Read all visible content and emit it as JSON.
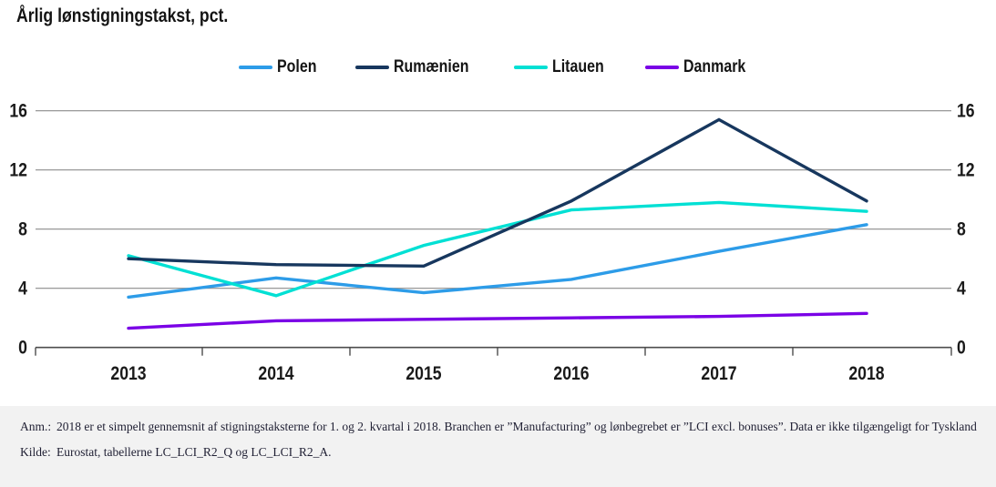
{
  "title": "Årlig lønstigningstakst, pct.",
  "chart_data": {
    "type": "line",
    "title": "Årlig lønstigningstakst, pct.",
    "xlabel": "",
    "ylabel": "pct.",
    "ylim": [
      0,
      16
    ],
    "grid": "horizontal",
    "legend_position": "top-center",
    "x": [
      2013,
      2014,
      2015,
      2016,
      2017,
      2018
    ],
    "y_ticks": [
      0,
      4,
      8,
      12,
      16
    ],
    "series": [
      {
        "name": "Polen",
        "color": "#2D9CE8",
        "values": [
          3.4,
          4.7,
          3.7,
          4.6,
          6.5,
          8.3
        ]
      },
      {
        "name": "Rumænien",
        "color": "#17375E",
        "values": [
          6.0,
          5.6,
          5.5,
          9.9,
          15.4,
          9.9
        ]
      },
      {
        "name": "Litauen",
        "color": "#00E0D4",
        "values": [
          6.2,
          3.5,
          6.9,
          9.3,
          9.8,
          9.2
        ]
      },
      {
        "name": "Danmark",
        "color": "#7A00E6",
        "values": [
          1.3,
          1.8,
          1.9,
          2.0,
          2.1,
          2.3
        ]
      }
    ]
  },
  "colors": {
    "grid": "#8C8C8C",
    "axis": "#4D4D4D",
    "label_text": "#1A1A1A",
    "footnote_bg": "#F2F2F2"
  },
  "footnote": {
    "note_label": "Anm.:",
    "note_text": "2018 er et simpelt gennemsnit af stigningstaksterne for 1. og 2. kvartal i 2018. Branchen er ”Manufacturing” og lønbegrebet er ”LCI excl. bonuses”. Data er ikke tilgængeligt for Tyskland",
    "source_label": "Kilde:",
    "source_text": "Eurostat, tabellerne LC_LCI_R2_Q og LC_LCI_R2_A."
  }
}
